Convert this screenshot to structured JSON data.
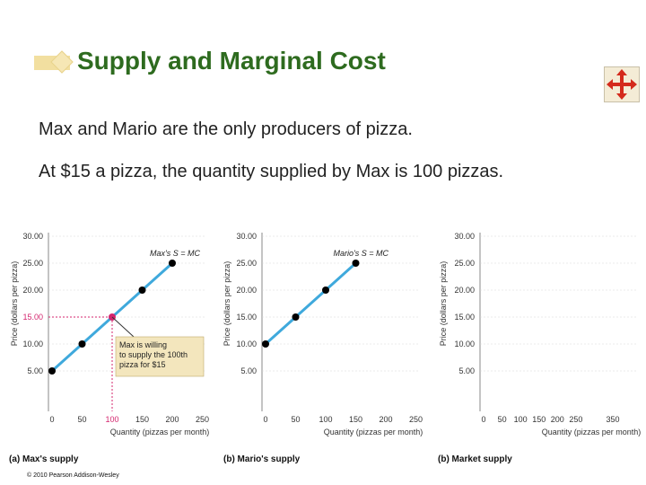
{
  "slide": {
    "title": "Supply and Marginal Cost",
    "line1": "Max and Mario are the only producers of pizza.",
    "line2": "At $15 a pizza, the quantity supplied by Max is 100 pizzas.",
    "copyright": "© 2010 Pearson Addison-Wesley"
  },
  "colors": {
    "title": "#2e6b1f",
    "curve": "#3fa9dc",
    "highlight": "#d4256e",
    "callout_bg": "#f3e6bd"
  },
  "chart_data": [
    {
      "type": "line",
      "panel_label": "(a) Max's supply",
      "xlabel": "Quantity (pizzas per month)",
      "ylabel": "Price (dollars per pizza)",
      "xticks": [
        "0",
        "50",
        "100",
        "150",
        "200",
        "250"
      ],
      "yticks": [
        "5.00",
        "10.00",
        "15.00",
        "20.00",
        "25.00",
        "30.00"
      ],
      "xlim": [
        0,
        250
      ],
      "ylim": [
        2.5,
        30
      ],
      "series": [
        {
          "name": "Max's S = MC",
          "x": [
            0,
            50,
            100,
            150,
            200
          ],
          "y": [
            5,
            10,
            15,
            20,
            25
          ]
        }
      ],
      "highlight": {
        "x": 100,
        "y": 15,
        "x_tick": "100",
        "y_tick": "15.00"
      },
      "callout": [
        "Max is willing",
        "to supply the 100th",
        "pizza for $15"
      ]
    },
    {
      "type": "line",
      "panel_label": "(b) Mario's supply",
      "xlabel": "Quantity (pizzas per month)",
      "ylabel": "Price (dollars per pizza)",
      "xticks": [
        "0",
        "50",
        "100",
        "150",
        "200",
        "250"
      ],
      "yticks": [
        "5.00",
        "10.00",
        "15.00",
        "20.00",
        "25.00",
        "30.00"
      ],
      "xlim": [
        0,
        250
      ],
      "ylim": [
        2.5,
        30
      ],
      "series": [
        {
          "name": "Mario's S = MC",
          "x": [
            0,
            50,
            100,
            150
          ],
          "y": [
            10,
            15,
            20,
            25
          ]
        }
      ]
    },
    {
      "type": "line",
      "panel_label": "(b) Market supply",
      "xlabel": "Quantity (pizzas per month)",
      "ylabel": "Price (dollars per pizza)",
      "xticks": [
        "0",
        "50",
        "100",
        "150",
        "200",
        "250",
        "350"
      ],
      "yticks": [
        "5.00",
        "10.00",
        "15.00",
        "20.00",
        "25.00",
        "30.00"
      ],
      "xlim": [
        0,
        350
      ],
      "ylim": [
        2.5,
        30
      ],
      "series": []
    }
  ]
}
